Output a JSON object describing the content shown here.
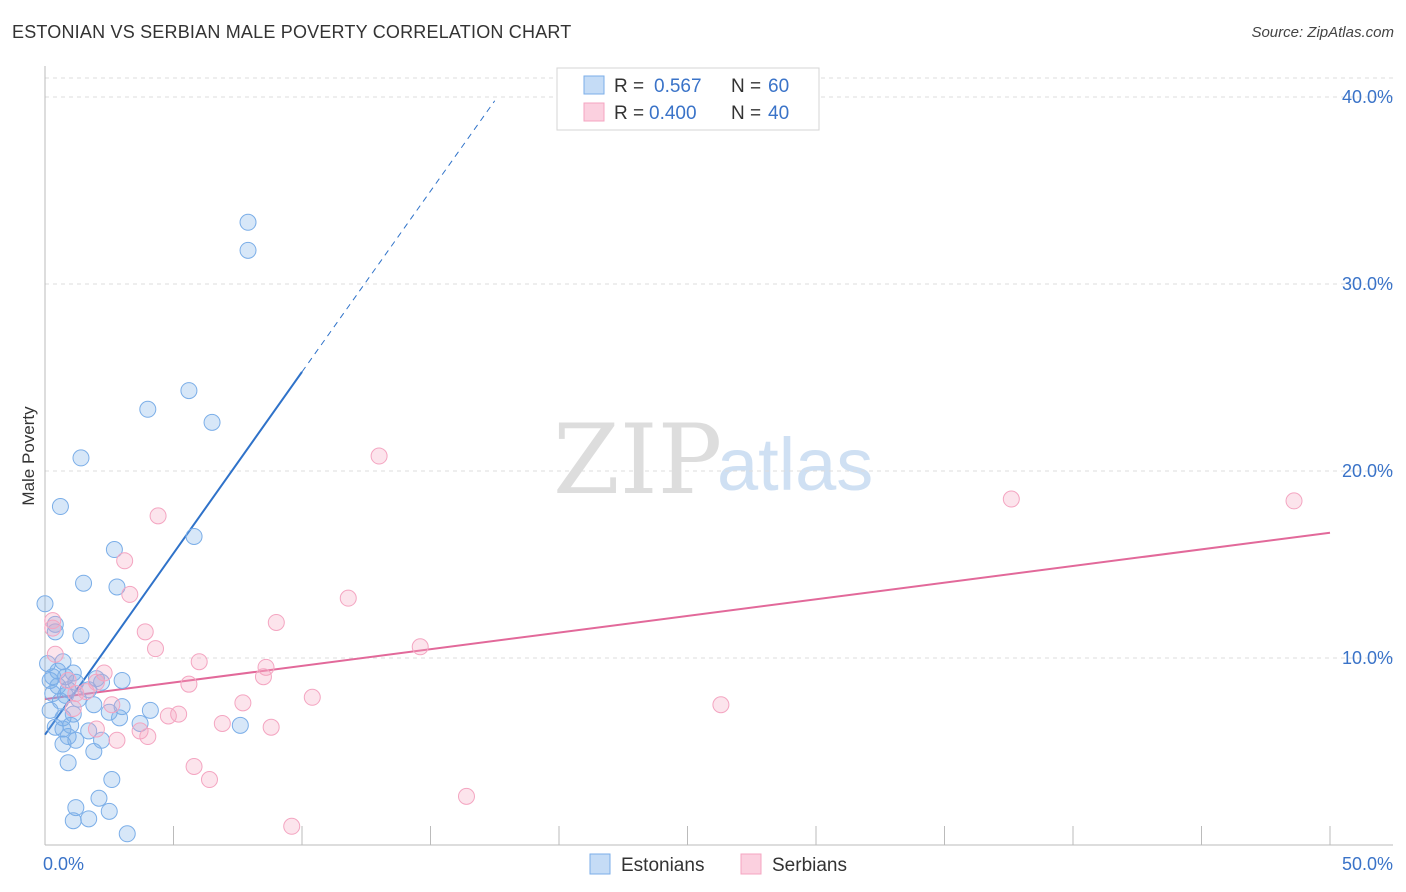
{
  "title": "ESTONIAN VS SERBIAN MALE POVERTY CORRELATION CHART",
  "source": "Source: ZipAtlas.com",
  "watermark": {
    "zip": "ZIP",
    "atlas": "atlas"
  },
  "chart_data": {
    "type": "scatter",
    "xlabel": "",
    "ylabel": "Male Poverty",
    "xlim": [
      0,
      50
    ],
    "ylim": [
      0,
      40
    ],
    "x_tick_labels": [
      {
        "value": 0,
        "label": "0.0%"
      },
      {
        "value": 50,
        "label": "50.0%"
      }
    ],
    "y_ticks": [
      {
        "value": 10,
        "label": "10.0%"
      },
      {
        "value": 20,
        "label": "20.0%"
      },
      {
        "value": 30,
        "label": "30.0%"
      },
      {
        "value": 40,
        "label": "40.0%"
      }
    ],
    "grid": true,
    "legend_position": "top-center",
    "series": [
      {
        "name": "Estonians",
        "color": "#7baee8",
        "line_color": "#2f72c9",
        "stats": {
          "r_label": "R =",
          "r_value": "0.567",
          "n_label": "N =",
          "n_value": "60"
        },
        "trend": {
          "x0": 0.0,
          "y0": 5.9,
          "x1": 10.0,
          "y1": 25.3,
          "dash_x1": 17.5,
          "dash_y1": 39.8
        },
        "points": [
          [
            7.9,
            33.3
          ],
          [
            7.9,
            31.8
          ],
          [
            5.6,
            24.3
          ],
          [
            4.0,
            23.3
          ],
          [
            6.5,
            22.6
          ],
          [
            1.4,
            20.7
          ],
          [
            0.6,
            18.1
          ],
          [
            5.8,
            16.5
          ],
          [
            2.7,
            15.8
          ],
          [
            1.5,
            14.0
          ],
          [
            2.8,
            13.8
          ],
          [
            0.0,
            12.9
          ],
          [
            0.4,
            11.8
          ],
          [
            0.4,
            11.4
          ],
          [
            1.4,
            11.2
          ],
          [
            0.1,
            9.7
          ],
          [
            0.7,
            9.8
          ],
          [
            0.5,
            9.3
          ],
          [
            1.1,
            9.2
          ],
          [
            0.3,
            9.0
          ],
          [
            0.8,
            9.0
          ],
          [
            0.2,
            8.8
          ],
          [
            1.2,
            8.7
          ],
          [
            2.0,
            8.9
          ],
          [
            3.0,
            8.8
          ],
          [
            0.5,
            8.5
          ],
          [
            0.9,
            8.3
          ],
          [
            1.7,
            8.3
          ],
          [
            2.2,
            8.7
          ],
          [
            0.3,
            8.1
          ],
          [
            0.8,
            8.0
          ],
          [
            1.3,
            7.8
          ],
          [
            0.6,
            7.7
          ],
          [
            1.9,
            7.5
          ],
          [
            3.0,
            7.4
          ],
          [
            4.1,
            7.2
          ],
          [
            0.2,
            7.2
          ],
          [
            1.1,
            7.0
          ],
          [
            2.5,
            7.1
          ],
          [
            0.7,
            6.8
          ],
          [
            2.9,
            6.8
          ],
          [
            1.0,
            6.4
          ],
          [
            3.7,
            6.5
          ],
          [
            0.4,
            6.3
          ],
          [
            0.7,
            6.2
          ],
          [
            7.6,
            6.4
          ],
          [
            1.7,
            6.1
          ],
          [
            0.9,
            5.8
          ],
          [
            1.2,
            5.6
          ],
          [
            2.2,
            5.6
          ],
          [
            0.7,
            5.4
          ],
          [
            1.9,
            5.0
          ],
          [
            0.9,
            4.4
          ],
          [
            2.6,
            3.5
          ],
          [
            2.1,
            2.5
          ],
          [
            1.2,
            2.0
          ],
          [
            2.5,
            1.8
          ],
          [
            1.7,
            1.4
          ],
          [
            1.1,
            1.3
          ],
          [
            3.2,
            0.6
          ]
        ]
      },
      {
        "name": "Serbians",
        "color": "#f4a5c1",
        "line_color": "#e2699a",
        "stats": {
          "r_label": "R =",
          "r_value": "0.400",
          "n_label": "N =",
          "n_value": "40"
        },
        "trend": {
          "x0": 0.0,
          "y0": 7.8,
          "x1": 50.0,
          "y1": 16.7
        },
        "points": [
          [
            13.0,
            20.8
          ],
          [
            37.6,
            18.5
          ],
          [
            48.6,
            18.4
          ],
          [
            4.4,
            17.6
          ],
          [
            3.1,
            15.2
          ],
          [
            3.3,
            13.4
          ],
          [
            11.8,
            13.2
          ],
          [
            0.3,
            12.0
          ],
          [
            9.0,
            11.9
          ],
          [
            0.3,
            11.6
          ],
          [
            3.9,
            11.4
          ],
          [
            4.3,
            10.5
          ],
          [
            14.6,
            10.6
          ],
          [
            0.4,
            10.2
          ],
          [
            6.0,
            9.8
          ],
          [
            8.6,
            9.5
          ],
          [
            2.3,
            9.2
          ],
          [
            8.5,
            9.0
          ],
          [
            2.0,
            8.7
          ],
          [
            5.6,
            8.6
          ],
          [
            1.2,
            8.1
          ],
          [
            1.6,
            8.2
          ],
          [
            10.4,
            7.9
          ],
          [
            7.7,
            7.6
          ],
          [
            26.3,
            7.5
          ],
          [
            2.6,
            7.5
          ],
          [
            1.1,
            7.3
          ],
          [
            4.8,
            6.9
          ],
          [
            5.2,
            7.0
          ],
          [
            6.9,
            6.5
          ],
          [
            8.8,
            6.3
          ],
          [
            2.0,
            6.2
          ],
          [
            3.7,
            6.1
          ],
          [
            4.0,
            5.8
          ],
          [
            2.8,
            5.6
          ],
          [
            5.8,
            4.2
          ],
          [
            6.4,
            3.5
          ],
          [
            16.4,
            2.6
          ],
          [
            9.6,
            1.0
          ],
          [
            0.9,
            8.8
          ]
        ]
      }
    ]
  }
}
